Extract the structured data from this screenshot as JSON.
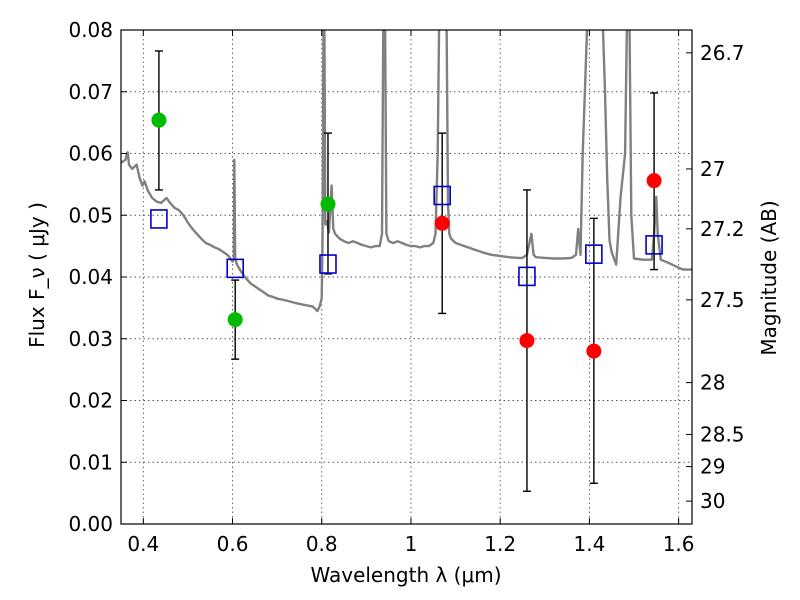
{
  "chart_data": {
    "type": "scatter",
    "xlabel": "Wavelength  λ (μm)",
    "ylabel": "Flux  F_ν  ( μJy )",
    "y2label": "Magnitude (AB)",
    "xlim": [
      0.35,
      1.63
    ],
    "ylim": [
      0.0,
      0.08
    ],
    "grid": true,
    "x_ticks": [
      "0.4",
      "0.6",
      "0.8",
      "1",
      "1.2",
      "1.4",
      "1.6"
    ],
    "y_ticks": [
      "0.00",
      "0.01",
      "0.02",
      "0.03",
      "0.04",
      "0.05",
      "0.06",
      "0.07",
      "0.08"
    ],
    "y2_ticks": [
      {
        "label": "26.7",
        "flux": 0.0763
      },
      {
        "label": "27",
        "flux": 0.0575
      },
      {
        "label": "27.2",
        "flux": 0.0478
      },
      {
        "label": "27.5",
        "flux": 0.0363
      },
      {
        "label": "28",
        "flux": 0.0229
      },
      {
        "label": "28.5",
        "flux": 0.0145
      },
      {
        "label": "29",
        "flux": 0.0093
      },
      {
        "label": "30",
        "flux": 0.0037
      }
    ],
    "colors": {
      "green": "#00bb00",
      "red": "#ff0000",
      "model": "#808080",
      "square": "#0000cc",
      "errorbar": "#000000",
      "grid": "#555555"
    },
    "series": [
      {
        "marker": "circle",
        "color": "green",
        "points": [
          {
            "x": 0.435,
            "y": 0.0654,
            "yerr": [
              0.0541,
              0.0766
            ]
          },
          {
            "x": 0.606,
            "y": 0.0331,
            "yerr": [
              0.0267,
              0.0395
            ]
          },
          {
            "x": 0.814,
            "y": 0.0518,
            "yerr": [
              0.0405,
              0.0633
            ]
          }
        ]
      },
      {
        "marker": "circle",
        "color": "red",
        "points": [
          {
            "x": 1.07,
            "y": 0.0487,
            "yerr": [
              0.0341,
              0.0633
            ]
          },
          {
            "x": 1.26,
            "y": 0.0297,
            "yerr": [
              0.0053,
              0.0541
            ]
          },
          {
            "x": 1.41,
            "y": 0.028,
            "yerr": [
              0.0066,
              0.0495
            ]
          },
          {
            "x": 1.545,
            "y": 0.0556,
            "yerr": [
              0.0412,
              0.0698
            ]
          }
        ]
      },
      {
        "marker": "open-square",
        "color": "square",
        "points": [
          {
            "x": 0.435,
            "y": 0.0494
          },
          {
            "x": 0.606,
            "y": 0.0414
          },
          {
            "x": 0.814,
            "y": 0.0421
          },
          {
            "x": 1.07,
            "y": 0.0532
          },
          {
            "x": 1.26,
            "y": 0.0401
          },
          {
            "x": 1.41,
            "y": 0.0437
          },
          {
            "x": 1.545,
            "y": 0.0452
          }
        ]
      }
    ],
    "model_spectrum": {
      "color": "model",
      "points": [
        [
          0.35,
          0.0585
        ],
        [
          0.36,
          0.059
        ],
        [
          0.363,
          0.06
        ],
        [
          0.365,
          0.0602
        ],
        [
          0.368,
          0.0582
        ],
        [
          0.375,
          0.0575
        ],
        [
          0.385,
          0.0582
        ],
        [
          0.392,
          0.056
        ],
        [
          0.398,
          0.0548
        ],
        [
          0.403,
          0.0555
        ],
        [
          0.41,
          0.054
        ],
        [
          0.42,
          0.0528
        ],
        [
          0.43,
          0.0522
        ],
        [
          0.44,
          0.052
        ],
        [
          0.452,
          0.0528
        ],
        [
          0.46,
          0.052
        ],
        [
          0.47,
          0.0512
        ],
        [
          0.48,
          0.0508
        ],
        [
          0.49,
          0.05
        ],
        [
          0.5,
          0.0488
        ],
        [
          0.51,
          0.0478
        ],
        [
          0.52,
          0.047
        ],
        [
          0.53,
          0.0462
        ],
        [
          0.54,
          0.0455
        ],
        [
          0.55,
          0.0452
        ],
        [
          0.56,
          0.0448
        ],
        [
          0.57,
          0.0445
        ],
        [
          0.58,
          0.044
        ],
        [
          0.59,
          0.0435
        ],
        [
          0.6,
          0.0425
        ],
        [
          0.603,
          0.043
        ],
        [
          0.604,
          0.059
        ],
        [
          0.606,
          0.043
        ],
        [
          0.61,
          0.042
        ],
        [
          0.62,
          0.0408
        ],
        [
          0.63,
          0.0398
        ],
        [
          0.64,
          0.039
        ],
        [
          0.65,
          0.0385
        ],
        [
          0.66,
          0.038
        ],
        [
          0.67,
          0.0375
        ],
        [
          0.68,
          0.037
        ],
        [
          0.69,
          0.0368
        ],
        [
          0.7,
          0.0365
        ],
        [
          0.72,
          0.0362
        ],
        [
          0.74,
          0.0358
        ],
        [
          0.76,
          0.0355
        ],
        [
          0.78,
          0.0352
        ],
        [
          0.79,
          0.0345
        ],
        [
          0.795,
          0.0352
        ],
        [
          0.8,
          0.0365
        ],
        [
          0.802,
          0.047
        ],
        [
          0.804,
          0.081
        ],
        [
          0.806,
          0.081
        ],
        [
          0.808,
          0.0485
        ],
        [
          0.812,
          0.049
        ],
        [
          0.816,
          0.0472
        ],
        [
          0.822,
          0.0548
        ],
        [
          0.826,
          0.0478
        ],
        [
          0.83,
          0.047
        ],
        [
          0.84,
          0.0462
        ],
        [
          0.85,
          0.0458
        ],
        [
          0.86,
          0.0455
        ],
        [
          0.87,
          0.0458
        ],
        [
          0.88,
          0.0455
        ],
        [
          0.89,
          0.0452
        ],
        [
          0.9,
          0.045
        ],
        [
          0.91,
          0.0448
        ],
        [
          0.92,
          0.045
        ],
        [
          0.93,
          0.045
        ],
        [
          0.935,
          0.047
        ],
        [
          0.938,
          0.081
        ],
        [
          0.942,
          0.081
        ],
        [
          0.945,
          0.047
        ],
        [
          0.95,
          0.0458
        ],
        [
          0.96,
          0.0455
        ],
        [
          0.97,
          0.0458
        ],
        [
          0.98,
          0.0455
        ],
        [
          0.99,
          0.0452
        ],
        [
          1.0,
          0.045
        ],
        [
          1.01,
          0.045
        ],
        [
          1.02,
          0.0448
        ],
        [
          1.03,
          0.045
        ],
        [
          1.04,
          0.045
        ],
        [
          1.05,
          0.0455
        ],
        [
          1.055,
          0.047
        ],
        [
          1.06,
          0.06
        ],
        [
          1.063,
          0.081
        ],
        [
          1.076,
          0.081
        ],
        [
          1.08,
          0.081
        ],
        [
          1.083,
          0.052
        ],
        [
          1.086,
          0.047
        ],
        [
          1.09,
          0.0462
        ],
        [
          1.1,
          0.0455
        ],
        [
          1.12,
          0.045
        ],
        [
          1.14,
          0.0445
        ],
        [
          1.16,
          0.044
        ],
        [
          1.18,
          0.0436
        ],
        [
          1.2,
          0.0434
        ],
        [
          1.22,
          0.0432
        ],
        [
          1.24,
          0.0431
        ],
        [
          1.25,
          0.0431
        ],
        [
          1.26,
          0.0436
        ],
        [
          1.27,
          0.047
        ],
        [
          1.275,
          0.0436
        ],
        [
          1.28,
          0.0432
        ],
        [
          1.3,
          0.0431
        ],
        [
          1.32,
          0.043
        ],
        [
          1.34,
          0.043
        ],
        [
          1.36,
          0.0431
        ],
        [
          1.37,
          0.0436
        ],
        [
          1.375,
          0.0478
        ],
        [
          1.38,
          0.0436
        ],
        [
          1.385,
          0.06
        ],
        [
          1.39,
          0.07
        ],
        [
          1.395,
          0.081
        ],
        [
          1.405,
          0.081
        ],
        [
          1.42,
          0.081
        ],
        [
          1.425,
          0.081
        ],
        [
          1.43,
          0.081
        ],
        [
          1.435,
          0.07
        ],
        [
          1.44,
          0.056
        ],
        [
          1.445,
          0.046
        ],
        [
          1.45,
          0.044
        ],
        [
          1.46,
          0.042
        ],
        [
          1.47,
          0.053
        ],
        [
          1.48,
          0.06
        ],
        [
          1.484,
          0.081
        ],
        [
          1.49,
          0.081
        ],
        [
          1.494,
          0.05
        ],
        [
          1.5,
          0.043
        ],
        [
          1.52,
          0.0428
        ],
        [
          1.54,
          0.0428
        ],
        [
          1.545,
          0.047
        ],
        [
          1.55,
          0.053
        ],
        [
          1.553,
          0.047
        ],
        [
          1.56,
          0.0428
        ],
        [
          1.58,
          0.0422
        ],
        [
          1.6,
          0.0415
        ],
        [
          1.61,
          0.0412
        ],
        [
          1.63,
          0.0412
        ]
      ]
    }
  }
}
